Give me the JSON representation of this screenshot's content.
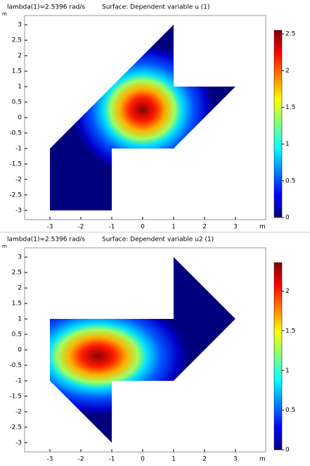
{
  "chart_data": [
    {
      "type": "surface",
      "title": "lambda(1)=2.5396 rad/s",
      "subtitle": "Surface: Dependent variable u (1)",
      "x_unit": "m",
      "y_unit": "m",
      "xlim": [
        -3.82,
        3.98
      ],
      "ylim": [
        -3.3,
        3.3
      ],
      "xticks": [
        -3,
        -2,
        -1,
        0,
        1,
        2,
        3
      ],
      "yticks": [
        -3,
        -2.5,
        -2,
        -1.5,
        -1,
        -0.5,
        0,
        0.5,
        1,
        1.5,
        2,
        2.5,
        3
      ],
      "clim": [
        0,
        2.55
      ],
      "cticks": [
        0,
        0.5,
        1,
        1.5,
        2,
        2.5
      ]
    },
    {
      "type": "surface",
      "title": "lambda(1)=2.5396 rad/s",
      "subtitle": "Surface: Dependent variable u2 (1)",
      "x_unit": "m",
      "y_unit": "m",
      "xlim": [
        -3.82,
        3.98
      ],
      "ylim": [
        -3.3,
        3.3
      ],
      "xticks": [
        -3,
        -2,
        -1,
        0,
        1,
        2,
        3
      ],
      "yticks": [
        -3,
        -2.5,
        -2,
        -1.5,
        -1,
        -0.5,
        0,
        0.5,
        1,
        1.5,
        2,
        2.5,
        3
      ],
      "clim": [
        0,
        2.36
      ],
      "cticks": [
        0,
        0.5,
        1,
        1.5,
        2
      ]
    }
  ]
}
